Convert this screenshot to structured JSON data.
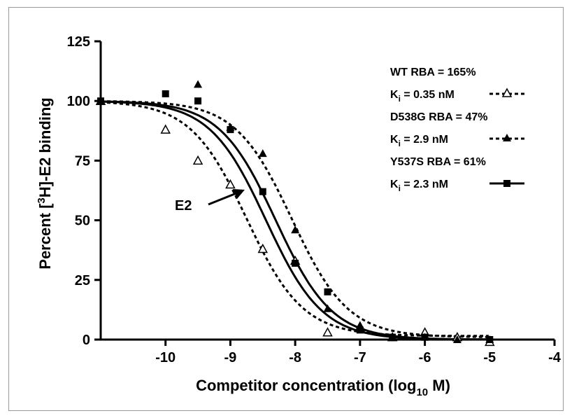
{
  "chart_data": {
    "type": "line",
    "xlabel_main": "Competitor concentration (log",
    "xlabel_sub": "10",
    "xlabel_end": " M)",
    "ylabel_pre": "Percent [",
    "ylabel_sup": "3",
    "ylabel_post": "H]-E2 binding",
    "xlim": [
      -11,
      -4
    ],
    "ylim": [
      0,
      125
    ],
    "x_ticks": [
      -10,
      -9,
      -8,
      -7,
      -6,
      -5,
      -4
    ],
    "y_ticks": [
      0,
      25,
      50,
      75,
      100,
      125
    ],
    "annotation": "E2",
    "legend": [
      {
        "rba": "WT RBA = 165%",
        "ki_pre": "K",
        "ki_sub": "i",
        "ki_post": " = 0.35 nM",
        "marker": "open-triangle",
        "dash": true
      },
      {
        "rba": "D538G RBA = 47%",
        "ki_pre": "K",
        "ki_sub": "i",
        "ki_post": " = 2.9 nM",
        "marker": "filled-triangle",
        "dash": true
      },
      {
        "rba": "Y537S RBA = 61%",
        "ki_pre": "K",
        "ki_sub": "i",
        "ki_post": " = 2.3 nM",
        "marker": "filled-square",
        "dash": false
      }
    ],
    "series": [
      {
        "key": "wt_dashed",
        "marker": "open-triangle",
        "dash": true,
        "ic50_log": -8.75,
        "top": 100,
        "bottom": 1.5,
        "points": [
          {
            "x": -11,
            "y": 100
          },
          {
            "x": -10,
            "y": 88
          },
          {
            "x": -9.5,
            "y": 75
          },
          {
            "x": -9,
            "y": 65
          },
          {
            "x": -8.5,
            "y": 38
          },
          {
            "x": -8,
            "y": 33
          },
          {
            "x": -7.5,
            "y": 3
          },
          {
            "x": -7,
            "y": 5
          },
          {
            "x": -6.5,
            "y": 1
          },
          {
            "x": -6,
            "y": 3
          },
          {
            "x": -5.5,
            "y": 1
          },
          {
            "x": -5,
            "y": -1
          }
        ]
      },
      {
        "key": "d538g_dashed",
        "marker": "filled-triangle",
        "dash": true,
        "ic50_log": -8.05,
        "top": 100,
        "bottom": 1,
        "points": [
          {
            "x": -11,
            "y": 100
          },
          {
            "x": -9.5,
            "y": 107
          },
          {
            "x": -9,
            "y": 89
          },
          {
            "x": -8.5,
            "y": 78
          },
          {
            "x": -8,
            "y": 46
          },
          {
            "x": -7.5,
            "y": 13
          },
          {
            "x": -7,
            "y": 6
          },
          {
            "x": -6.5,
            "y": 1
          },
          {
            "x": -6,
            "y": 1
          },
          {
            "x": -5.5,
            "y": 0
          },
          {
            "x": -5,
            "y": 0
          }
        ]
      },
      {
        "key": "y537s_solid",
        "marker": "filled-square",
        "dash": false,
        "ic50_log": -8.3,
        "top": 100,
        "bottom": 0,
        "points": [
          {
            "x": -11,
            "y": 100
          },
          {
            "x": -10,
            "y": 103
          },
          {
            "x": -9.5,
            "y": 100
          },
          {
            "x": -9,
            "y": 88
          },
          {
            "x": -8.5,
            "y": 62
          },
          {
            "x": -8,
            "y": 32
          },
          {
            "x": -7.5,
            "y": 20
          },
          {
            "x": -7,
            "y": 4
          },
          {
            "x": -6.5,
            "y": 1
          },
          {
            "x": -6,
            "y": 1
          },
          {
            "x": -5,
            "y": 0
          }
        ]
      },
      {
        "key": "e2_solid",
        "marker": "none",
        "dash": false,
        "ic50_log": -8.45,
        "top": 100,
        "bottom": 0,
        "points": []
      }
    ]
  }
}
